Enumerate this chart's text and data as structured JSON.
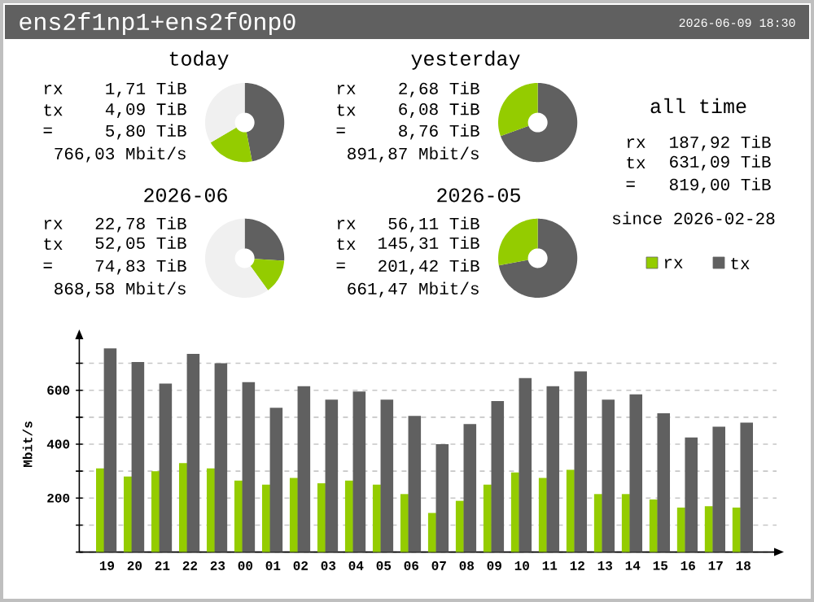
{
  "chart_data": [
    {
      "type": "other",
      "title": "ens2f1np1+ens2f0np0",
      "subtitle": "2026-06-09 18:30"
    },
    {
      "type": "donut",
      "title": "today",
      "categories": [
        null,
        null,
        null
      ],
      "values": [
        47,
        19.5,
        33.5
      ],
      "colors": [
        "#606060",
        "#94cc00",
        "#f0f0f0"
      ],
      "annotations": [
        "rx",
        "1,71 TiB",
        "tx",
        "4,09 TiB",
        "=",
        "5,80 TiB",
        "766,03 Mbit/s"
      ]
    },
    {
      "type": "donut",
      "title": "yesterday",
      "categories": [
        null,
        null
      ],
      "values": [
        69.4,
        30.6
      ],
      "colors": [
        "#606060",
        "#94cc00"
      ],
      "annotations": [
        "rx",
        "2,68 TiB",
        "tx",
        "6,08 TiB",
        "=",
        "8,76 TiB",
        "891,87 Mbit/s"
      ]
    },
    {
      "type": "other",
      "title": "all time",
      "annotations": [
        "rx",
        "187,92 TiB",
        "tx",
        "631,09 TiB",
        "=",
        "819,00 TiB",
        "since 2026-02-28"
      ]
    },
    {
      "type": "donut",
      "title": "2026-06",
      "categories": [
        null,
        null,
        null
      ],
      "values": [
        26,
        14,
        60
      ],
      "colors": [
        "#606060",
        "#94cc00",
        "#f0f0f0"
      ],
      "annotations": [
        "rx",
        "22,78 TiB",
        "tx",
        "52,05 TiB",
        "=",
        "74,83 TiB",
        "868,58 Mbit/s"
      ]
    },
    {
      "type": "donut",
      "title": "2026-05",
      "categories": [
        null,
        null
      ],
      "values": [
        72.1,
        27.9
      ],
      "colors": [
        "#606060",
        "#94cc00"
      ],
      "annotations": [
        "rx",
        "56,11 TiB",
        "tx",
        "145,31 TiB",
        "=",
        "201,42 TiB",
        "661,47 Mbit/s"
      ]
    },
    {
      "type": "bar",
      "ylabel": "Mbit/s",
      "categories": [
        "19",
        "20",
        "21",
        "22",
        "23",
        "00",
        "01",
        "02",
        "03",
        "04",
        "05",
        "06",
        "07",
        "08",
        "09",
        "10",
        "11",
        "12",
        "13",
        "14",
        "15",
        "16",
        "17",
        "18"
      ],
      "series": [
        {
          "name": "rx",
          "color": "#94cc00",
          "values": [
            310,
            280,
            300,
            330,
            310,
            265,
            250,
            275,
            255,
            265,
            250,
            215,
            145,
            190,
            250,
            295,
            275,
            305,
            215,
            215,
            195,
            165,
            170,
            165
          ]
        },
        {
          "name": "tx",
          "color": "#606060",
          "values": [
            755,
            705,
            625,
            735,
            700,
            630,
            535,
            615,
            565,
            595,
            565,
            505,
            400,
            475,
            560,
            645,
            615,
            670,
            565,
            585,
            515,
            425,
            465,
            480
          ]
        }
      ],
      "ylim": [
        0,
        800
      ],
      "yticks": [
        {
          "value": 0,
          "label": null
        },
        {
          "value": 100,
          "label": null
        },
        200,
        {
          "value": 300,
          "label": null
        },
        400,
        {
          "value": 500,
          "label": null
        },
        600,
        {
          "value": 700,
          "label": null
        }
      ],
      "grid": "y",
      "legend": "top right"
    }
  ]
}
